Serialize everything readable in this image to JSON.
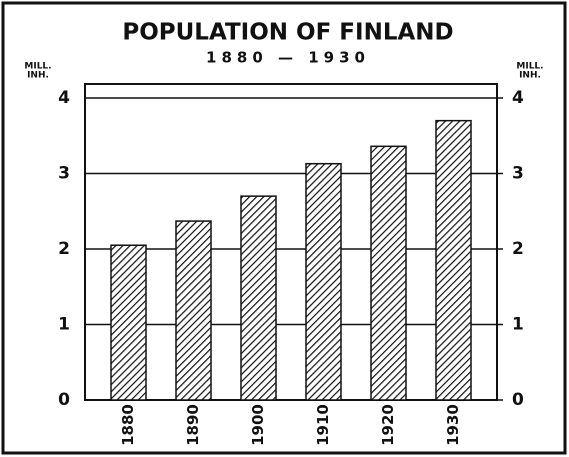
{
  "chart_data": {
    "type": "bar",
    "title": "POPULATION OF FINLAND",
    "subtitle": "1880 — 1930",
    "y_label": [
      "MILL.",
      "INH."
    ],
    "y2_label": [
      "MILL.",
      "INH."
    ],
    "categories": [
      "1880",
      "1890",
      "1900",
      "1910",
      "1920",
      "1930"
    ],
    "values": [
      2.05,
      2.37,
      2.7,
      3.13,
      3.36,
      3.7
    ],
    "color": "#111111",
    "ylim": [
      0,
      4
    ],
    "yticks": [
      0,
      1,
      2,
      3,
      4
    ],
    "y2lim": [
      0,
      4
    ],
    "y2ticks": [
      0,
      1,
      2,
      3,
      4
    ],
    "grid": true
  }
}
